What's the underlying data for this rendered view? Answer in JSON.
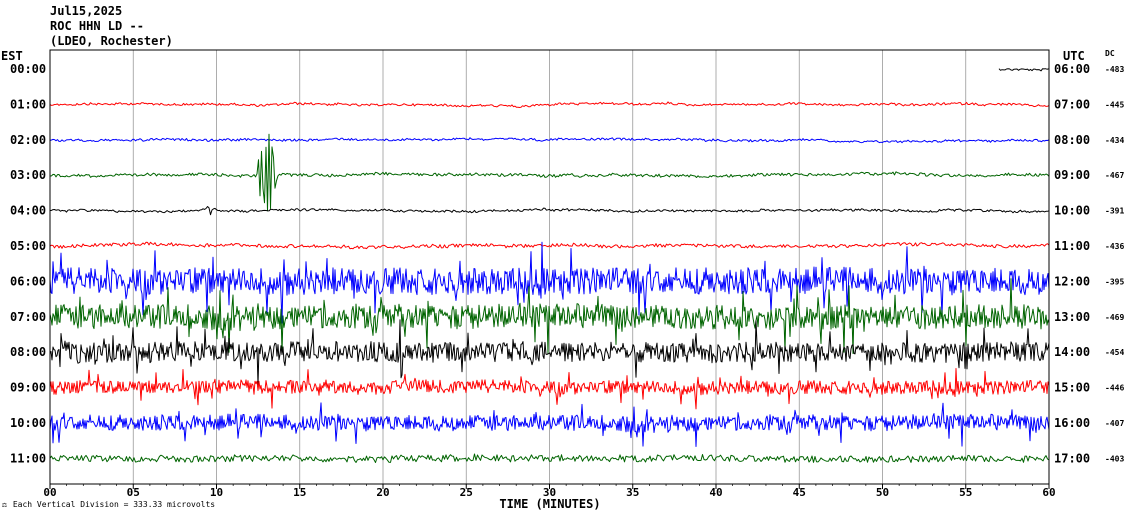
{
  "header": {
    "date": "Jul15,2025",
    "station": "ROC HHN LD --",
    "network": "(LDEO, Rochester)"
  },
  "left_tz": "EST",
  "right_tz": "UTC",
  "dc_title": "DC",
  "footer": {
    "scale_icon": "scale-icon",
    "scale_note": "Each Vertical Division = 333.33 microvolts"
  },
  "chart_data": {
    "type": "line",
    "title": "",
    "xlabel": "TIME (MINUTES)",
    "xlim": [
      0,
      60
    ],
    "x_ticks": [
      "00",
      "05",
      "10",
      "15",
      "20",
      "25",
      "30",
      "35",
      "40",
      "45",
      "50",
      "55",
      "60"
    ],
    "grid": true,
    "trace_colors": [
      "#000000",
      "#ff0000",
      "#0000ff",
      "#006400"
    ],
    "rows": [
      {
        "est": "00:00",
        "utc": "06:00",
        "dc": "-483",
        "color": "#000000",
        "activity": 1.0,
        "start_min": 57.0
      },
      {
        "est": "01:00",
        "utc": "07:00",
        "dc": "-445",
        "color": "#ff0000",
        "activity": 1.0,
        "start_min": 0
      },
      {
        "est": "02:00",
        "utc": "08:00",
        "dc": "-434",
        "color": "#0000ff",
        "activity": 1.0,
        "start_min": 0
      },
      {
        "est": "03:00",
        "utc": "09:00",
        "dc": "-467",
        "color": "#006400",
        "activity": 1.3,
        "start_min": 0
      },
      {
        "est": "04:00",
        "utc": "10:00",
        "dc": "-391",
        "color": "#000000",
        "activity": 1.0,
        "start_min": 0
      },
      {
        "est": "05:00",
        "utc": "11:00",
        "dc": "-436",
        "color": "#ff0000",
        "activity": 1.5,
        "start_min": 0
      },
      {
        "est": "06:00",
        "utc": "12:00",
        "dc": "-395",
        "color": "#0000ff",
        "activity": 12,
        "start_min": 0
      },
      {
        "est": "07:00",
        "utc": "13:00",
        "dc": "-469",
        "color": "#006400",
        "activity": 11,
        "start_min": 0
      },
      {
        "est": "08:00",
        "utc": "14:00",
        "dc": "-454",
        "color": "#000000",
        "activity": 9,
        "start_min": 0
      },
      {
        "est": "09:00",
        "utc": "15:00",
        "dc": "-446",
        "color": "#ff0000",
        "activity": 6,
        "start_min": 0
      },
      {
        "est": "10:00",
        "utc": "16:00",
        "dc": "-407",
        "color": "#0000ff",
        "activity": 7,
        "start_min": 0
      },
      {
        "est": "11:00",
        "utc": "17:00",
        "dc": "-403",
        "color": "#006400",
        "activity": 3,
        "start_min": 0
      }
    ],
    "events": [
      {
        "row": 3,
        "minute": 13.0,
        "amplitude": 120,
        "label": ""
      },
      {
        "row": 4,
        "minute": 9.5,
        "amplitude": 12,
        "label": ""
      }
    ]
  }
}
